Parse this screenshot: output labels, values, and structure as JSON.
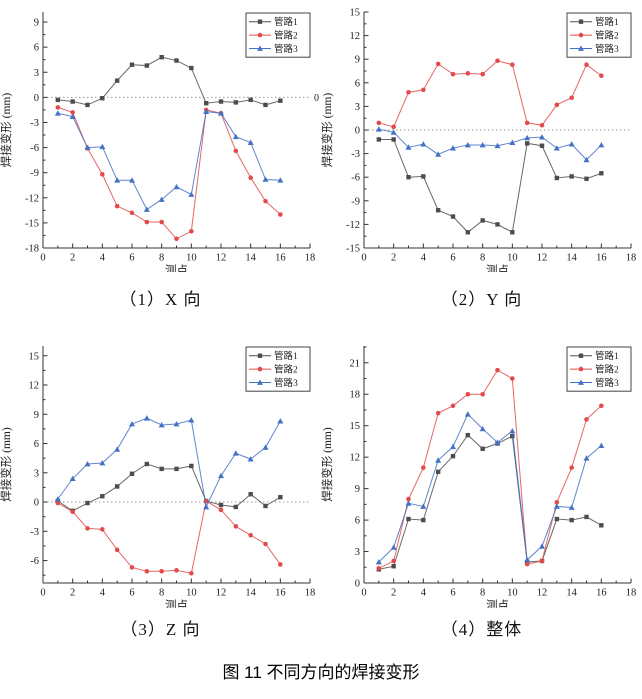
{
  "figure_caption": "图 11 不同方向的焊接变形",
  "palette": {
    "series1": "#4d4d4d",
    "series2": "#e34b4b",
    "series3": "#4472c4",
    "axis": "#333333",
    "zero_line": "#9a9a9a"
  },
  "chart_data": [
    {
      "type": "line",
      "caption": "（1）X 向",
      "xlabel": "测点",
      "ylabel": "焊接变形 (mm)",
      "xlim": [
        0,
        18
      ],
      "xticks": [
        0,
        2,
        4,
        6,
        8,
        10,
        12,
        14,
        16,
        18
      ],
      "ylim": [
        -18,
        10.2
      ],
      "yticks": [
        -18,
        -15,
        -12,
        -9,
        -6,
        -3,
        0,
        3,
        6,
        9
      ],
      "zero_line": true,
      "zero_label": "0",
      "legend_position": "top-right",
      "x": [
        1,
        2,
        3,
        4,
        5,
        6,
        7,
        8,
        9,
        10,
        11,
        12,
        13,
        14,
        15,
        16
      ],
      "series": [
        {
          "name": "管路1",
          "color": "#4d4d4d",
          "marker": "square",
          "values": [
            -0.3,
            -0.5,
            -0.9,
            -0.1,
            2.0,
            3.9,
            3.8,
            4.8,
            4.4,
            3.5,
            -0.7,
            -0.5,
            -0.6,
            -0.3,
            -0.9,
            -0.4
          ]
        },
        {
          "name": "管路2",
          "color": "#e34b4b",
          "marker": "circle",
          "values": [
            -1.2,
            -1.8,
            -6.1,
            -9.2,
            -13.0,
            -13.8,
            -14.9,
            -14.9,
            -16.9,
            -16.0,
            -1.5,
            -1.9,
            -6.4,
            -9.6,
            -12.4,
            -14.0
          ]
        },
        {
          "name": "管路3",
          "color": "#4472c4",
          "marker": "triangle",
          "values": [
            -1.9,
            -2.3,
            -6.0,
            -5.9,
            -9.9,
            -9.9,
            -13.4,
            -12.2,
            -10.7,
            -11.6,
            -1.7,
            -1.9,
            -4.7,
            -5.4,
            -9.8,
            -9.9
          ]
        }
      ]
    },
    {
      "type": "line",
      "caption": "（2）Y 向",
      "xlabel": "测点",
      "ylabel": "焊接变形 (mm)",
      "xlim": [
        0,
        18
      ],
      "xticks": [
        0,
        2,
        4,
        6,
        8,
        10,
        12,
        14,
        16,
        18
      ],
      "ylim": [
        -15,
        15
      ],
      "yticks": [
        -15,
        -12,
        -9,
        -6,
        -3,
        0,
        3,
        6,
        9,
        12,
        15
      ],
      "zero_line": true,
      "zero_label": "",
      "legend_position": "top-right",
      "x": [
        1,
        2,
        3,
        4,
        5,
        6,
        7,
        8,
        9,
        10,
        11,
        12,
        13,
        14,
        15,
        16
      ],
      "series": [
        {
          "name": "管路1",
          "color": "#4d4d4d",
          "marker": "square",
          "values": [
            -1.2,
            -1.2,
            -6.0,
            -5.9,
            -10.2,
            -11.0,
            -13.0,
            -11.5,
            -12.0,
            -13.0,
            -1.7,
            -2.0,
            -6.1,
            -5.9,
            -6.2,
            -5.5
          ]
        },
        {
          "name": "管路2",
          "color": "#e34b4b",
          "marker": "circle",
          "values": [
            0.9,
            0.4,
            4.8,
            5.1,
            8.4,
            7.1,
            7.2,
            7.1,
            8.8,
            8.3,
            0.9,
            0.6,
            3.2,
            4.1,
            8.3,
            6.9
          ]
        },
        {
          "name": "管路3",
          "color": "#4472c4",
          "marker": "triangle",
          "values": [
            0.1,
            -0.3,
            -2.2,
            -1.8,
            -3.1,
            -2.3,
            -1.9,
            -1.9,
            -2.0,
            -1.6,
            -1.0,
            -0.9,
            -2.3,
            -1.8,
            -3.8,
            -1.9
          ]
        }
      ]
    },
    {
      "type": "line",
      "caption": "（3）Z 向",
      "xlabel": "测点",
      "ylabel": "焊接变形 (mm)",
      "xlim": [
        0,
        18
      ],
      "xticks": [
        0,
        2,
        4,
        6,
        8,
        10,
        12,
        14,
        16,
        18
      ],
      "ylim": [
        -8.3,
        16
      ],
      "yticks": [
        -6,
        -3,
        0,
        3,
        6,
        9,
        12,
        15
      ],
      "zero_line": true,
      "zero_label": "",
      "legend_position": "top-right",
      "x": [
        1,
        2,
        3,
        4,
        5,
        6,
        7,
        8,
        9,
        10,
        11,
        12,
        13,
        14,
        15,
        16
      ],
      "series": [
        {
          "name": "管路1",
          "color": "#4d4d4d",
          "marker": "square",
          "values": [
            0.1,
            -0.9,
            -0.1,
            0.6,
            1.6,
            2.9,
            3.9,
            3.4,
            3.4,
            3.7,
            0.1,
            -0.3,
            -0.5,
            0.8,
            -0.4,
            0.5
          ]
        },
        {
          "name": "管路2",
          "color": "#e34b4b",
          "marker": "circle",
          "values": [
            -0.1,
            -1.0,
            -2.7,
            -2.8,
            -4.9,
            -6.7,
            -7.1,
            -7.1,
            -7.0,
            -7.3,
            0.1,
            -0.8,
            -2.5,
            -3.4,
            -4.3,
            -6.4
          ]
        },
        {
          "name": "管路3",
          "color": "#4472c4",
          "marker": "triangle",
          "values": [
            0.3,
            2.4,
            3.9,
            4.0,
            5.4,
            8.0,
            8.6,
            7.9,
            8.0,
            8.4,
            -0.5,
            2.7,
            5.0,
            4.4,
            5.6,
            8.3
          ]
        }
      ]
    },
    {
      "type": "line",
      "caption": "（4）整体",
      "xlabel": "测点",
      "ylabel": "焊接变形 (mm)",
      "xlim": [
        0,
        18
      ],
      "xticks": [
        0,
        2,
        4,
        6,
        8,
        10,
        12,
        14,
        16,
        18
      ],
      "ylim": [
        0,
        22.6
      ],
      "yticks": [
        0,
        3,
        6,
        9,
        12,
        15,
        18,
        21
      ],
      "zero_line": false,
      "zero_label": "",
      "legend_position": "top-right",
      "x": [
        1,
        2,
        3,
        4,
        5,
        6,
        7,
        8,
        9,
        10,
        11,
        12,
        13,
        14,
        15,
        16
      ],
      "series": [
        {
          "name": "管路1",
          "color": "#4d4d4d",
          "marker": "square",
          "values": [
            1.3,
            1.6,
            6.1,
            6.0,
            10.6,
            12.1,
            14.1,
            12.8,
            13.3,
            14.0,
            2.0,
            2.1,
            6.1,
            6.0,
            6.3,
            5.5
          ]
        },
        {
          "name": "管路2",
          "color": "#e34b4b",
          "marker": "circle",
          "values": [
            1.4,
            2.1,
            8.0,
            11.0,
            16.2,
            16.9,
            18.0,
            18.0,
            20.3,
            19.5,
            1.8,
            2.1,
            7.7,
            11.0,
            15.6,
            16.9
          ]
        },
        {
          "name": "管路3",
          "color": "#4472c4",
          "marker": "triangle",
          "values": [
            2.0,
            3.4,
            7.6,
            7.3,
            11.7,
            13.0,
            16.1,
            14.7,
            13.4,
            14.5,
            2.2,
            3.5,
            7.3,
            7.2,
            11.9,
            13.1
          ]
        }
      ]
    }
  ]
}
